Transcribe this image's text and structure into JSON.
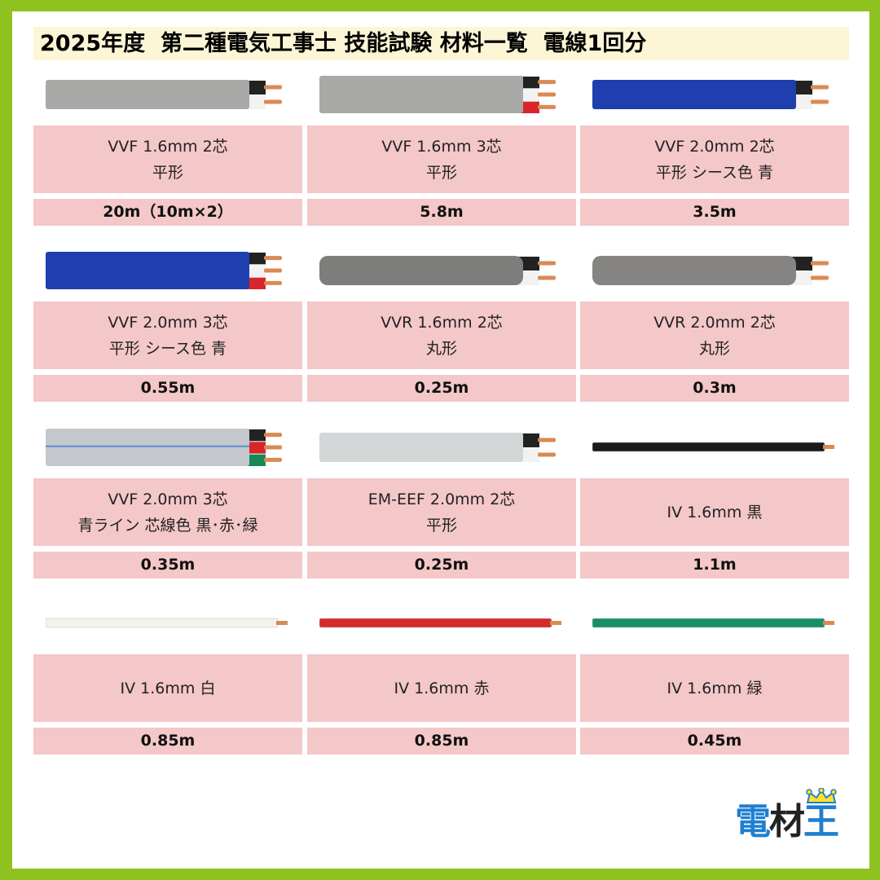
{
  "title": "2025年度  第二種電気工事士 技能試験 材料一覧  電線1回分",
  "colors": {
    "border": "#8dc21f",
    "title_bg": "#fcf6d6",
    "cell_bg": "#f4c7c8"
  },
  "items": [
    {
      "line1": "VVF 1.6mm 2芯",
      "line2": "平形",
      "amount": "20m（10m×2）",
      "wire": {
        "type": "flat",
        "sheath": "#a9a9a7",
        "cores": [
          "#222",
          "#f2f2f2"
        ]
      }
    },
    {
      "line1": "VVF 1.6mm 3芯",
      "line2": "平形",
      "amount": "5.8m",
      "wire": {
        "type": "flat",
        "sheath": "#a9a9a7",
        "cores": [
          "#222",
          "#f2f2f2",
          "#d8262b"
        ]
      }
    },
    {
      "line1": "VVF 2.0mm 2芯",
      "line2": "平形  シース色  青",
      "amount": "3.5m",
      "wire": {
        "type": "flat",
        "sheath": "#1f3fae",
        "cores": [
          "#222",
          "#f2f2f2"
        ]
      }
    },
    {
      "line1": "VVF 2.0mm 3芯",
      "line2": "平形  シース色  青",
      "amount": "0.55m",
      "wire": {
        "type": "flat",
        "sheath": "#1f3fae",
        "cores": [
          "#222",
          "#f2f2f2",
          "#d8262b"
        ]
      }
    },
    {
      "line1": "VVR 1.6mm 2芯",
      "line2": "丸形",
      "amount": "0.25m",
      "wire": {
        "type": "round",
        "sheath": "#7d7d7b",
        "cores": [
          "#222",
          "#f2f2f2"
        ]
      }
    },
    {
      "line1": "VVR 2.0mm 2芯",
      "line2": "丸形",
      "amount": "0.3m",
      "wire": {
        "type": "round",
        "sheath": "#858482",
        "cores": [
          "#222",
          "#f2f2f2"
        ]
      }
    },
    {
      "line1": "VVF 2.0mm 3芯",
      "line2": "青ライン 芯線色 黒･赤･緑",
      "amount": "0.35m",
      "wire": {
        "type": "flat",
        "sheath": "#c4c8cc",
        "stripe": "#5a8fd0",
        "cores": [
          "#222",
          "#d8262b",
          "#138a55"
        ]
      }
    },
    {
      "line1": "EM-EEF 2.0mm 2芯",
      "line2": "平形",
      "amount": "0.25m",
      "wire": {
        "type": "flat",
        "sheath": "#d3d6d6",
        "cores": [
          "#222",
          "#f2f2f2"
        ]
      }
    },
    {
      "line1": "IV 1.6mm 黒",
      "line2": "",
      "amount": "1.1m",
      "wire": {
        "type": "single",
        "sheath": "#1a1a1a"
      }
    },
    {
      "line1": "IV 1.6mm 白",
      "line2": "",
      "amount": "0.85m",
      "wire": {
        "type": "single",
        "sheath": "#f4f2ea"
      }
    },
    {
      "line1": "IV 1.6mm 赤",
      "line2": "",
      "amount": "0.85m",
      "wire": {
        "type": "single",
        "sheath": "#d42a2e"
      }
    },
    {
      "line1": "IV 1.6mm 緑",
      "line2": "",
      "amount": "0.45m",
      "wire": {
        "type": "single",
        "sheath": "#169064"
      }
    }
  ],
  "logo": {
    "c1": "電",
    "c2": "材",
    "c3": "王"
  }
}
